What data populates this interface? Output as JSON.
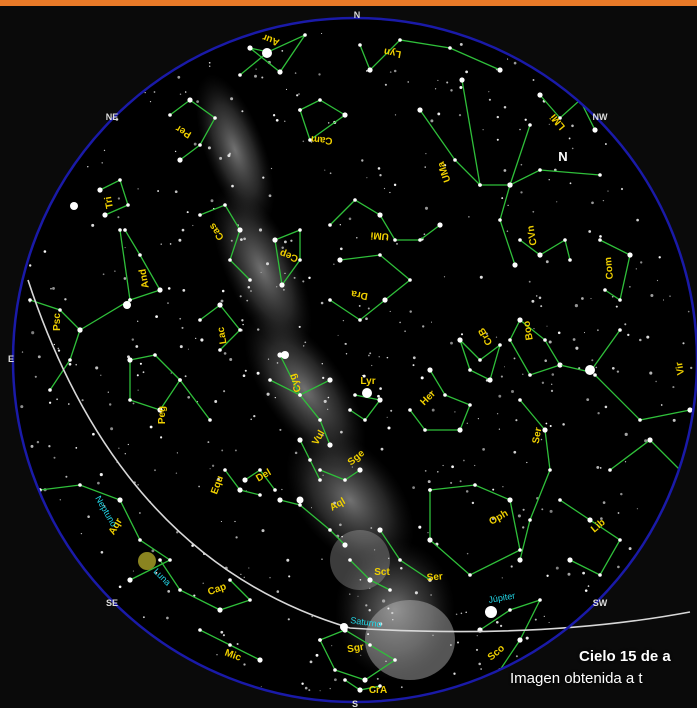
{
  "header_color": "#e87a28",
  "colors": {
    "horizon": "#1a1aa8",
    "ecliptic": "#d8d8d8",
    "constellation_lines": "#2fbf3a",
    "constellation_labels": "#f0d000",
    "planet_labels": "#22d8e8",
    "moon": "#8a8420"
  },
  "directions": {
    "n": "N",
    "ne": "NE",
    "nw": "NW",
    "e": "E",
    "se": "SE",
    "sw": "SW",
    "s": "S"
  },
  "polar_marker": "N",
  "constellations": [
    "Aur",
    "Lyn",
    "LMi",
    "Cam",
    "Per",
    "UMa",
    "UMi",
    "CVn",
    "Tri",
    "Cas",
    "Com",
    "Cep",
    "And",
    "Dra",
    "Psc",
    "Lac",
    "CrB",
    "Boo",
    "Cyg",
    "Lyr",
    "Her",
    "Vir",
    "Peg",
    "Ser",
    "Vul",
    "Sge",
    "Equ",
    "Del",
    "Oph",
    "Lib",
    "Aql",
    "Aqr",
    "Sct",
    "Ser",
    "Cap",
    "Sgr",
    "Sco",
    "Mic",
    "CrA"
  ],
  "planets": [
    "Neptuno",
    "Luna",
    "Saturno",
    "Júpiter"
  ],
  "caption": {
    "line1": "Cielo 15 de a",
    "line2": "Imagen obtenida a t"
  }
}
